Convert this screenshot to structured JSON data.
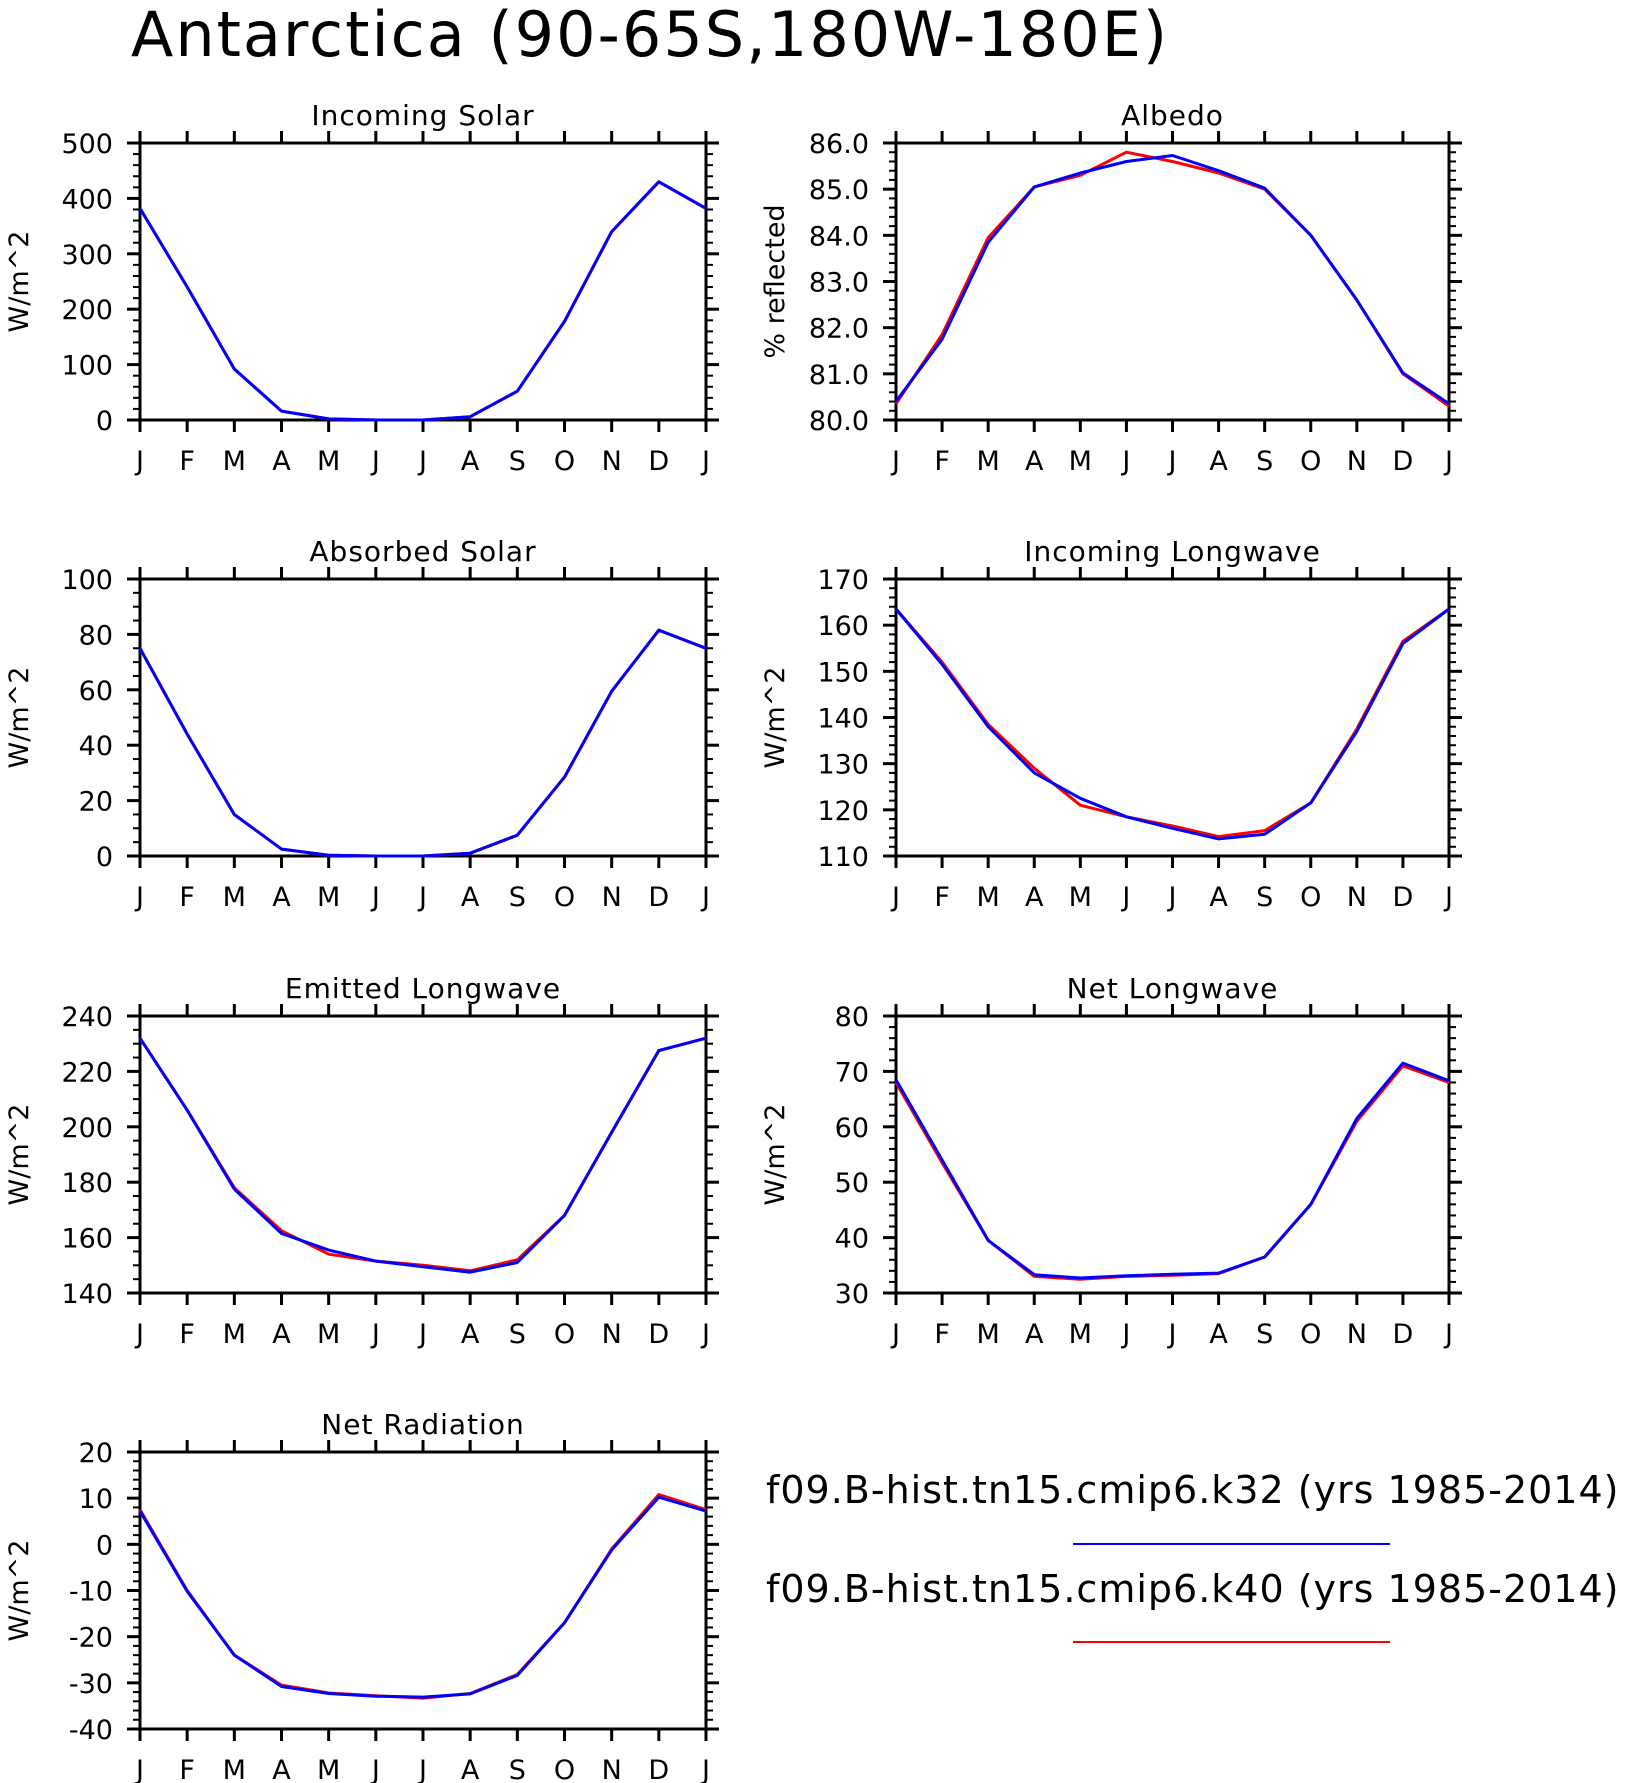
{
  "title": "Antarctica (90-65S,180W-180E)",
  "colors": {
    "red": "#ff0000",
    "blue": "#0000ff",
    "axis": "#000000"
  },
  "legend": [
    {
      "label": "f09.B-hist.tn15.cmip6.k32 (yrs 1985-2014)",
      "color": "#0000ff"
    },
    {
      "label": "f09.B-hist.tn15.cmip6.k40 (yrs 1985-2014)",
      "color": "#ff0000"
    }
  ],
  "chart_data": [
    {
      "type": "line",
      "title": "Incoming Solar",
      "ylabel": "W/m^2",
      "categories": [
        "J",
        "F",
        "M",
        "A",
        "M",
        "J",
        "J",
        "A",
        "S",
        "O",
        "N",
        "D",
        "J"
      ],
      "ylim": [
        0,
        500
      ],
      "yticks": [
        "0",
        "100",
        "200",
        "300",
        "400",
        "500"
      ],
      "yminor": 5,
      "series": [
        {
          "values": [
            382,
            240,
            92,
            16,
            2,
            0,
            0,
            6,
            52,
            178,
            340,
            430,
            382
          ],
          "color": "#ff0000"
        },
        {
          "values": [
            382,
            240,
            92,
            16,
            2,
            0,
            0,
            6,
            52,
            178,
            340,
            430,
            382
          ],
          "color": "#0000ff"
        }
      ]
    },
    {
      "type": "line",
      "title": "Albedo",
      "ylabel": "% reflected",
      "categories": [
        "J",
        "F",
        "M",
        "A",
        "M",
        "J",
        "J",
        "A",
        "S",
        "O",
        "N",
        "D",
        "J"
      ],
      "ylim": [
        80,
        86
      ],
      "yticks": [
        "80.0",
        "81.0",
        "82.0",
        "83.0",
        "84.0",
        "85.0",
        "86.0"
      ],
      "yminor": 5,
      "series": [
        {
          "values": [
            80.35,
            81.85,
            83.95,
            85.05,
            85.3,
            85.8,
            85.6,
            85.35,
            85.0,
            84.0,
            82.6,
            81.0,
            80.3
          ],
          "color": "#ff0000"
        },
        {
          "values": [
            80.4,
            81.75,
            83.85,
            85.05,
            85.35,
            85.6,
            85.73,
            85.4,
            85.02,
            84.0,
            82.6,
            81.02,
            80.35
          ],
          "color": "#0000ff"
        }
      ]
    },
    {
      "type": "line",
      "title": "Absorbed Solar",
      "ylabel": "W/m^2",
      "categories": [
        "J",
        "F",
        "M",
        "A",
        "M",
        "J",
        "J",
        "A",
        "S",
        "O",
        "N",
        "D",
        "J"
      ],
      "ylim": [
        0,
        100
      ],
      "yticks": [
        "0",
        "20",
        "40",
        "60",
        "80",
        "100"
      ],
      "yminor": 4,
      "series": [
        {
          "values": [
            75,
            44,
            15,
            2.5,
            0.3,
            0,
            0,
            1,
            7.5,
            28.5,
            59.5,
            81.5,
            75
          ],
          "color": "#ff0000"
        },
        {
          "values": [
            75,
            44,
            15,
            2.5,
            0.3,
            0,
            0,
            1,
            7.5,
            28.5,
            59.5,
            81.5,
            75
          ],
          "color": "#0000ff"
        }
      ]
    },
    {
      "type": "line",
      "title": "Incoming Longwave",
      "ylabel": "W/m^2",
      "categories": [
        "J",
        "F",
        "M",
        "A",
        "M",
        "J",
        "J",
        "A",
        "S",
        "O",
        "N",
        "D",
        "J"
      ],
      "ylim": [
        110,
        170
      ],
      "yticks": [
        "110",
        "120",
        "130",
        "140",
        "150",
        "160",
        "170"
      ],
      "yminor": 5,
      "series": [
        {
          "values": [
            163.5,
            152,
            138.5,
            129,
            121,
            118.5,
            116.5,
            114.2,
            115.5,
            121.5,
            137.5,
            156.5,
            163.5
          ],
          "color": "#ff0000"
        },
        {
          "values": [
            163.5,
            151.5,
            138,
            128,
            122.5,
            118.5,
            116,
            113.7,
            114.7,
            121.5,
            137,
            156,
            163.5
          ],
          "color": "#0000ff"
        }
      ]
    },
    {
      "type": "line",
      "title": "Emitted Longwave",
      "ylabel": "W/m^2",
      "categories": [
        "J",
        "F",
        "M",
        "A",
        "M",
        "J",
        "J",
        "A",
        "S",
        "O",
        "N",
        "D",
        "J"
      ],
      "ylim": [
        140,
        240
      ],
      "yticks": [
        "140",
        "160",
        "180",
        "200",
        "220",
        "240"
      ],
      "yminor": 4,
      "series": [
        {
          "values": [
            232,
            206,
            178,
            162.5,
            154,
            151.5,
            150,
            148,
            152,
            168,
            198,
            227.5,
            232
          ],
          "color": "#ff0000"
        },
        {
          "values": [
            232,
            206,
            177.5,
            161.5,
            155.5,
            151.5,
            149.5,
            147.5,
            151,
            168,
            198,
            227.5,
            232
          ],
          "color": "#0000ff"
        }
      ]
    },
    {
      "type": "line",
      "title": "Net Longwave",
      "ylabel": "W/m^2",
      "categories": [
        "J",
        "F",
        "M",
        "A",
        "M",
        "J",
        "J",
        "A",
        "S",
        "O",
        "N",
        "D",
        "J"
      ],
      "ylim": [
        30,
        80
      ],
      "yticks": [
        "30",
        "40",
        "50",
        "60",
        "70",
        "80"
      ],
      "yminor": 5,
      "series": [
        {
          "values": [
            68,
            53.5,
            39.5,
            33,
            32.5,
            33,
            33.2,
            33.5,
            36.5,
            46,
            61,
            71,
            68
          ],
          "color": "#ff0000"
        },
        {
          "values": [
            68.5,
            54,
            39.5,
            33.3,
            32.7,
            33.1,
            33.4,
            33.6,
            36.5,
            46,
            61.5,
            71.5,
            68.3
          ],
          "color": "#0000ff"
        }
      ]
    },
    {
      "type": "line",
      "title": "Net Radiation",
      "ylabel": "W/m^2",
      "categories": [
        "J",
        "F",
        "M",
        "A",
        "M",
        "J",
        "J",
        "A",
        "S",
        "O",
        "N",
        "D",
        "J"
      ],
      "ylim": [
        -40,
        20
      ],
      "yticks": [
        "-40",
        "-30",
        "-20",
        "-10",
        "0",
        "10",
        "20"
      ],
      "yminor": 5,
      "series": [
        {
          "values": [
            7.5,
            -10,
            -24,
            -30.5,
            -32.2,
            -32.8,
            -33.3,
            -32.3,
            -28.2,
            -17,
            -1,
            10.8,
            7.5
          ],
          "color": "#ff0000"
        },
        {
          "values": [
            7.2,
            -10.2,
            -24,
            -30.8,
            -32.3,
            -32.9,
            -33.1,
            -32.4,
            -28.4,
            -17,
            -1.2,
            10.2,
            7.2
          ],
          "color": "#0000ff"
        }
      ]
    }
  ]
}
